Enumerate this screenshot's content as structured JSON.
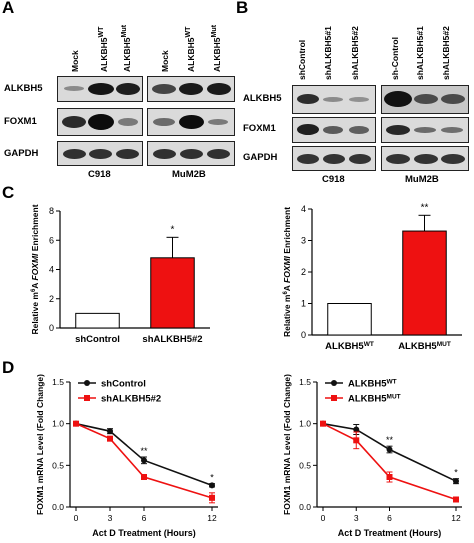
{
  "panels": {
    "A": {
      "label": "A",
      "columns": [
        "Mock",
        "ALKBH5WT",
        "ALKBH5Mut",
        "Mock",
        "ALKBH5WT",
        "ALKBH5Mut"
      ],
      "column_display": [
        {
          "base": "Mock",
          "sup": ""
        },
        {
          "base": "ALKBH5",
          "sup": "WT"
        },
        {
          "base": "ALKBH5",
          "sup": "Mut"
        },
        {
          "base": "Mock",
          "sup": ""
        },
        {
          "base": "ALKBH5",
          "sup": "WT"
        },
        {
          "base": "ALKBH5",
          "sup": "Mut"
        }
      ],
      "rows": [
        "ALKBH5",
        "FOXM1",
        "GAPDH"
      ],
      "cell_lines": [
        "C918",
        "MuM2B"
      ]
    },
    "B": {
      "label": "B",
      "columns": [
        "shControl",
        "shALKBH5#1",
        "shALKBH5#2",
        "sh-Control",
        "shALKBH5#1",
        "shALKBH5#2"
      ],
      "rows": [
        "ALKBH5",
        "FOXM1",
        "GAPDH"
      ],
      "cell_lines": [
        "C918",
        "MuM2B"
      ]
    },
    "C": {
      "label": "C"
    },
    "D": {
      "label": "D"
    }
  },
  "chart_data": [
    {
      "type": "bar",
      "panel": "C-left",
      "categories": [
        "shControl",
        "shALKBH5#2"
      ],
      "values": [
        1.0,
        4.8
      ],
      "errors": [
        0,
        1.4
      ],
      "colors": [
        "#ffffff",
        "#ee1111"
      ],
      "ylabel_parts": {
        "pre": "Relative m",
        "sup": "6",
        "mid": "A ",
        "italic": "FOXMI",
        "post": " Enrichment"
      },
      "ylabel": "Relative m6A FOXMI Enrichment",
      "ylim": [
        0,
        8
      ],
      "yticks": [
        "0",
        "2",
        "4",
        "6",
        "8"
      ],
      "annotations": [
        "*"
      ]
    },
    {
      "type": "bar",
      "panel": "C-right",
      "categories": [
        "ALKBH5WT",
        "ALKBH5MUT"
      ],
      "category_display": [
        {
          "base": "ALKBH5",
          "sup": "WT"
        },
        {
          "base": "ALKBH5",
          "sup": "MUT"
        }
      ],
      "values": [
        1.0,
        3.3
      ],
      "errors": [
        0,
        0.5
      ],
      "colors": [
        "#ffffff",
        "#ee1111"
      ],
      "ylabel_parts": {
        "pre": "Relative m",
        "sup": "6",
        "mid": "A ",
        "italic": "FOXMI",
        "post": " Enrichment"
      },
      "ylabel": "Relative m6A FOXMI Enrichment",
      "ylim": [
        0,
        4
      ],
      "yticks": [
        "0",
        "1",
        "2",
        "3",
        "4"
      ],
      "annotations": [
        "**"
      ]
    },
    {
      "type": "line",
      "panel": "D-left",
      "x": [
        0,
        3,
        6,
        12
      ],
      "xticks": [
        "0",
        "3",
        "6",
        "12"
      ],
      "series": [
        {
          "name": "shControl",
          "values": [
            1.0,
            0.91,
            0.56,
            0.26
          ],
          "errors": [
            0.01,
            0.03,
            0.04,
            0.02
          ],
          "color": "#111111",
          "marker": "circle"
        },
        {
          "name": "shALKBH5#2",
          "values": [
            1.0,
            0.82,
            0.36,
            0.11
          ],
          "errors": [
            0.01,
            0.02,
            0.02,
            0.06
          ],
          "color": "#ee1111",
          "marker": "square"
        }
      ],
      "xlabel": "Act D Treatment (Hours)",
      "ylabel": "FOXM1 mRNA Level (Fold Change)",
      "ylim": [
        0,
        1.5
      ],
      "yticks": [
        "0.0",
        "0.5",
        "1.0",
        "1.5"
      ],
      "annotations": [
        {
          "at": "6",
          "text": "**"
        },
        {
          "at": "12",
          "text": "*"
        }
      ]
    },
    {
      "type": "line",
      "panel": "D-right",
      "x": [
        0,
        3,
        6,
        12
      ],
      "xticks": [
        "0",
        "3",
        "6",
        "12"
      ],
      "series": [
        {
          "name": "ALKBH5WT",
          "display": {
            "base": "ALKBH5",
            "sup": "WT"
          },
          "values": [
            1.0,
            0.93,
            0.69,
            0.31
          ],
          "errors": [
            0.01,
            0.06,
            0.04,
            0.03
          ],
          "color": "#111111",
          "marker": "circle"
        },
        {
          "name": "ALKBH5MUT",
          "display": {
            "base": "ALKBH5",
            "sup": "MUT"
          },
          "values": [
            1.0,
            0.8,
            0.36,
            0.09
          ],
          "errors": [
            0.01,
            0.1,
            0.06,
            0.01
          ],
          "color": "#ee1111",
          "marker": "square"
        }
      ],
      "xlabel": "Act D Treatment (Hours)",
      "ylabel": "FOXM1 mRNA Level (Fold Change)",
      "ylim": [
        0,
        1.5
      ],
      "yticks": [
        "0.0",
        "0.5",
        "1.0",
        "1.5"
      ],
      "annotations": [
        {
          "at": "6",
          "text": "**"
        },
        {
          "at": "12",
          "text": "*"
        }
      ]
    }
  ]
}
